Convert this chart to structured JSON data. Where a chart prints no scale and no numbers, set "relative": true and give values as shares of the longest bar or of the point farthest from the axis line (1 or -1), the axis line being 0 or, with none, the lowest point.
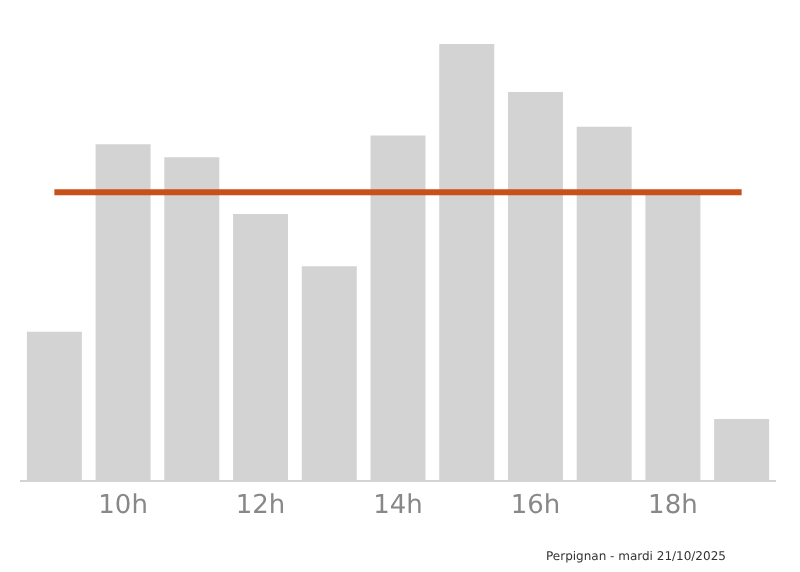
{
  "chart_data": {
    "type": "bar",
    "relative": true,
    "categories": [
      null,
      "10h",
      null,
      "12h",
      null,
      "14h",
      null,
      "16h",
      null,
      "18h",
      null
    ],
    "values": [
      0.34,
      0.77,
      0.74,
      0.61,
      0.49,
      0.79,
      1,
      0.89,
      0.81,
      0.66,
      0.14
    ],
    "color": "#d3d3d3",
    "ref_lines": [
      {
        "axis": "y",
        "value": 0.66,
        "color": "#c8501a"
      }
    ],
    "annotations": [
      "Perpignan - mardi 21/10/2025"
    ],
    "grid": false,
    "legend": false
  }
}
